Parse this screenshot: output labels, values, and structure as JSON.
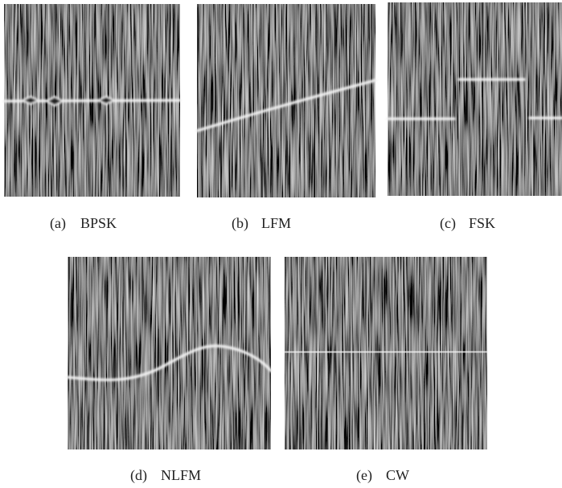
{
  "figure": {
    "panels": [
      {
        "tag": "(a)",
        "name": "BPSK"
      },
      {
        "tag": "(b)",
        "name": "LFM"
      },
      {
        "tag": "(c)",
        "name": "FSK"
      },
      {
        "tag": "(d)",
        "name": "NLFM"
      },
      {
        "tag": "(e)",
        "name": "CW"
      }
    ]
  }
}
